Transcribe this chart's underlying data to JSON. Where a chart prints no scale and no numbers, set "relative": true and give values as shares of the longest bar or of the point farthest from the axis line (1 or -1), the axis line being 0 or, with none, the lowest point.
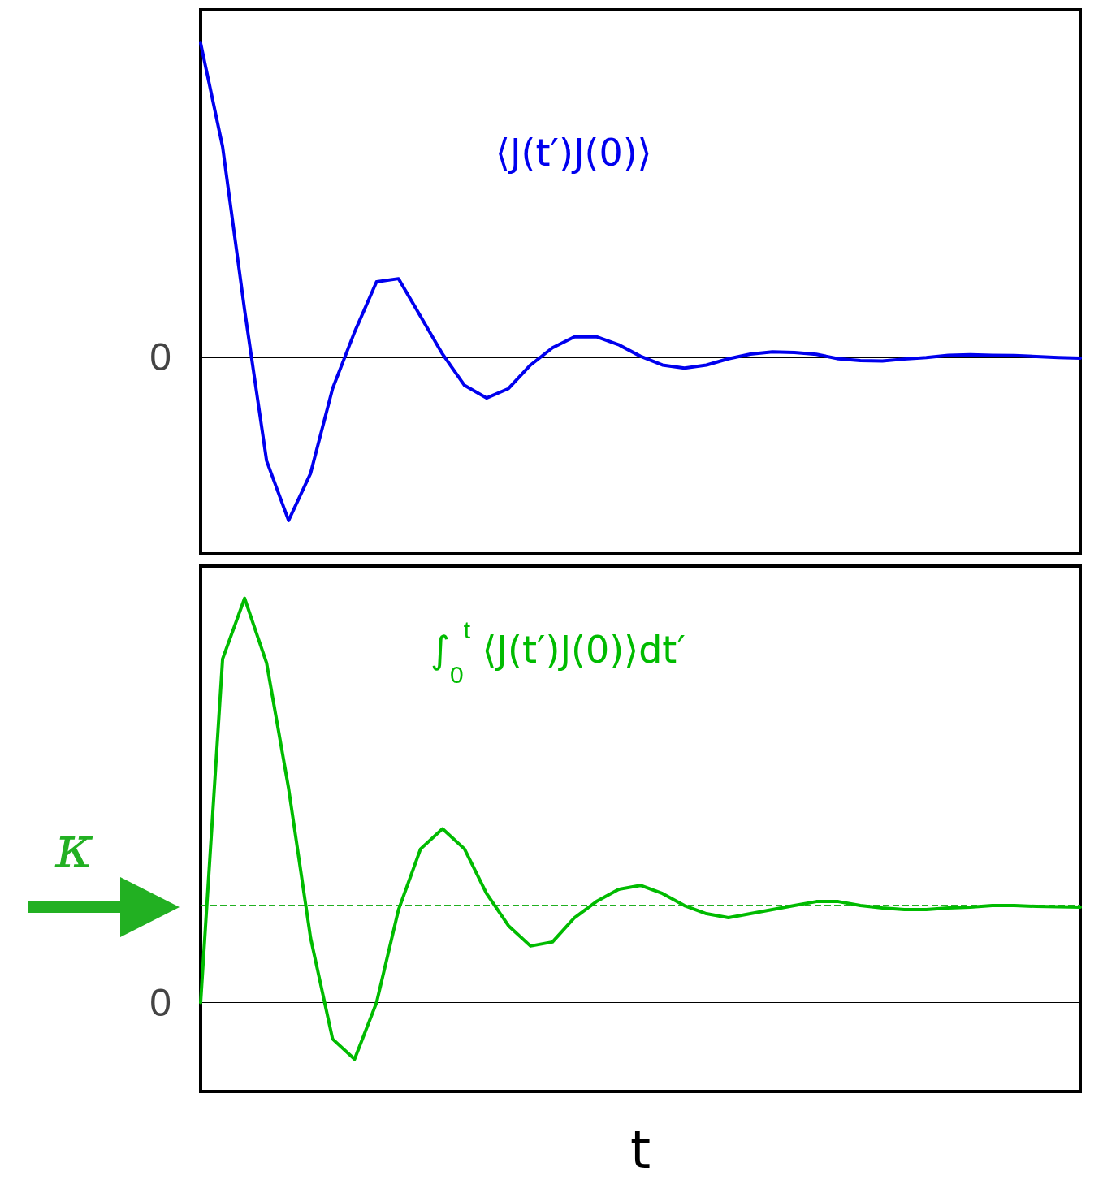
{
  "chart_data": [
    {
      "type": "line",
      "relative": true,
      "categories": [
        null,
        null,
        null,
        null,
        null,
        null,
        null,
        null,
        null,
        null,
        null,
        null,
        null,
        null,
        null,
        null,
        null,
        null,
        null,
        null,
        null,
        null,
        null,
        null,
        null,
        null,
        null,
        null,
        null,
        null,
        null,
        null,
        null,
        null,
        null,
        null,
        null,
        null,
        null,
        null,
        null
      ],
      "series": [
        {
          "color": "#0000ee",
          "values": [
            1.0,
            0.67,
            0.15,
            -0.33,
            -0.52,
            -0.37,
            -0.1,
            0.08,
            0.24,
            0.25,
            0.13,
            0.01,
            -0.09,
            -0.13,
            -0.1,
            -0.025,
            0.03,
            0.065,
            0.065,
            0.04,
            0.003,
            -0.025,
            -0.035,
            -0.025,
            -0.005,
            0.01,
            0.017,
            0.015,
            0.009,
            -0.005,
            -0.011,
            -0.012,
            -0.006,
            -0.001,
            0.006,
            0.008,
            0.006,
            0.005,
            0.002,
            -0.001,
            -0.003
          ]
        }
      ],
      "ref_lines": [
        {
          "axis": "y",
          "value": 0,
          "label": "0",
          "color": "#000000",
          "line_style": "solid"
        }
      ],
      "annotations": [
        "⟨J(t′)J(0)⟩"
      ],
      "line_style": "solid",
      "grid": false
    },
    {
      "type": "line",
      "relative": true,
      "xlabel": "t",
      "categories": [
        null,
        null,
        null,
        null,
        null,
        null,
        null,
        null,
        null,
        null,
        null,
        null,
        null,
        null,
        null,
        null,
        null,
        null,
        null,
        null,
        null,
        null,
        null,
        null,
        null,
        null,
        null,
        null,
        null,
        null,
        null,
        null,
        null,
        null,
        null,
        null,
        null,
        null,
        null,
        null,
        null
      ],
      "series": [
        {
          "color": "#00bb00",
          "values": [
            0,
            0.85,
            1.0,
            0.84,
            0.53,
            0.16,
            -0.09,
            -0.14,
            0,
            0.23,
            0.38,
            0.43,
            0.38,
            0.27,
            0.19,
            0.14,
            0.15,
            0.21,
            0.25,
            0.28,
            0.29,
            0.27,
            0.24,
            0.22,
            0.21,
            0.22,
            0.23,
            0.24,
            0.25,
            0.25,
            0.24,
            0.234,
            0.23,
            0.23,
            0.234,
            0.236,
            0.24,
            0.24,
            0.238,
            0.237,
            0.236
          ]
        }
      ],
      "ref_lines": [
        {
          "axis": "y",
          "value": 0,
          "label": "0",
          "color": "#000000",
          "line_style": "solid"
        },
        {
          "axis": "y",
          "value": 0.236,
          "label": "κ",
          "color": "#22b022",
          "line_style": "dashed"
        }
      ],
      "annotations": [
        "∫$_{0}$$^{t}$ ⟨J(t′)J(0)⟩dt′"
      ],
      "line_style": "solid",
      "grid": false
    }
  ]
}
